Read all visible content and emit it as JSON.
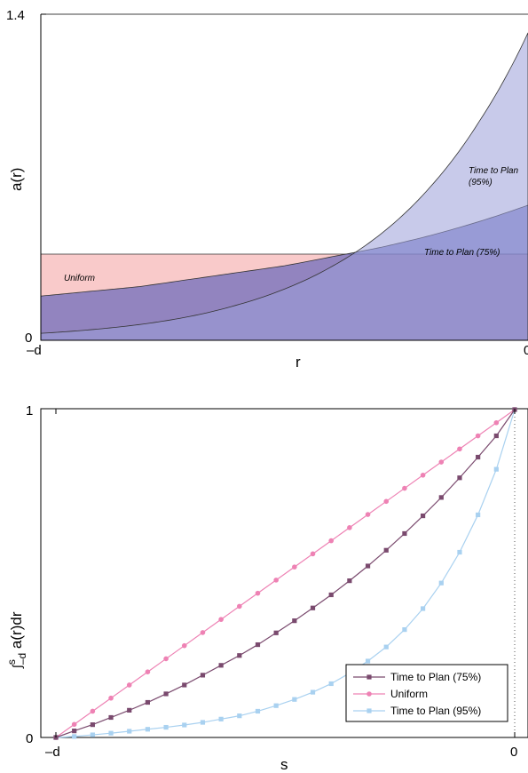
{
  "chart_data": [
    {
      "type": "area",
      "ylabel": "a(r)",
      "xlabel": "r",
      "x_tick_labels": [
        "–d",
        "0"
      ],
      "y_tick_labels": [
        "0",
        "1.4"
      ],
      "xlim": [
        0,
        1
      ],
      "ylim": [
        0,
        1.4
      ],
      "grid": false,
      "series": [
        {
          "name": "Uniform",
          "color": "#f6aaaa",
          "x": [
            0,
            0.1,
            0.2,
            0.3,
            0.4,
            0.5,
            0.6,
            0.7,
            0.8,
            0.9,
            1.0
          ],
          "values": [
            0.37,
            0.37,
            0.37,
            0.37,
            0.37,
            0.37,
            0.37,
            0.37,
            0.37,
            0.37,
            0.37
          ]
        },
        {
          "name": "Time to Plan (75%)",
          "color": "#5358b8",
          "x": [
            0,
            0.1,
            0.2,
            0.3,
            0.4,
            0.5,
            0.6,
            0.7,
            0.8,
            0.9,
            1.0
          ],
          "values": [
            0.19,
            0.21,
            0.23,
            0.26,
            0.29,
            0.32,
            0.36,
            0.4,
            0.45,
            0.51,
            0.58
          ]
        },
        {
          "name": "Time to Plan (95%)",
          "color": "#9a9ed8",
          "x": [
            0,
            0.1,
            0.2,
            0.3,
            0.4,
            0.5,
            0.6,
            0.7,
            0.8,
            0.9,
            1.0
          ],
          "values": [
            0.03,
            0.045,
            0.067,
            0.1,
            0.15,
            0.22,
            0.32,
            0.46,
            0.66,
            0.94,
            1.32
          ]
        }
      ],
      "annotations": [
        {
          "text": "Uniform"
        },
        {
          "text": "Time to Plan (75%)"
        },
        {
          "text": "Time to Plan"
        },
        {
          "text": "(95%)"
        }
      ]
    },
    {
      "type": "line",
      "ylabel": "∫ˢ₋ᵈ a(r)dr",
      "ylabel_parts": {
        "integral": "∫",
        "upper": "s",
        "lower": "–d",
        "rest": " a(r)dr"
      },
      "xlabel": "s",
      "x_tick_labels": [
        "–d",
        "0"
      ],
      "y_tick_labels": [
        "0",
        "1"
      ],
      "xlim": [
        0,
        1
      ],
      "ylim": [
        0,
        1
      ],
      "legend_position": "bottom-right",
      "grid": false,
      "series": [
        {
          "name": "Time to Plan (75%)",
          "color": "#7a4a6e",
          "marker": "square",
          "x": [
            0,
            0.04,
            0.08,
            0.12,
            0.16,
            0.2,
            0.24,
            0.28,
            0.32,
            0.36,
            0.4,
            0.44,
            0.48,
            0.52,
            0.56,
            0.6,
            0.64,
            0.68,
            0.72,
            0.76,
            0.8,
            0.84,
            0.88,
            0.92,
            0.96,
            1.0
          ],
          "values": [
            0,
            0.02,
            0.039,
            0.061,
            0.083,
            0.107,
            0.133,
            0.16,
            0.19,
            0.22,
            0.25,
            0.283,
            0.319,
            0.356,
            0.395,
            0.435,
            0.478,
            0.523,
            0.571,
            0.622,
            0.676,
            0.732,
            0.792,
            0.855,
            0.92,
            1.0
          ]
        },
        {
          "name": "Uniform",
          "color": "#ee82b4",
          "marker": "circle",
          "x": [
            0,
            0.04,
            0.08,
            0.12,
            0.16,
            0.2,
            0.24,
            0.28,
            0.32,
            0.36,
            0.4,
            0.44,
            0.48,
            0.52,
            0.56,
            0.6,
            0.64,
            0.68,
            0.72,
            0.76,
            0.8,
            0.84,
            0.88,
            0.92,
            0.96,
            1.0
          ],
          "values": [
            0,
            0.04,
            0.08,
            0.12,
            0.16,
            0.2,
            0.24,
            0.28,
            0.32,
            0.36,
            0.4,
            0.44,
            0.48,
            0.52,
            0.56,
            0.6,
            0.64,
            0.68,
            0.72,
            0.76,
            0.8,
            0.84,
            0.88,
            0.92,
            0.96,
            1.0
          ]
        },
        {
          "name": "Time to Plan (95%)",
          "color": "#a9d1f0",
          "marker": "square",
          "x": [
            0,
            0.04,
            0.08,
            0.12,
            0.16,
            0.2,
            0.24,
            0.28,
            0.32,
            0.36,
            0.4,
            0.44,
            0.48,
            0.52,
            0.56,
            0.6,
            0.64,
            0.68,
            0.72,
            0.76,
            0.8,
            0.84,
            0.88,
            0.92,
            0.96,
            1.0
          ],
          "values": [
            0,
            0.003,
            0.008,
            0.013,
            0.019,
            0.025,
            0.031,
            0.038,
            0.046,
            0.056,
            0.066,
            0.08,
            0.097,
            0.116,
            0.138,
            0.164,
            0.196,
            0.233,
            0.276,
            0.329,
            0.393,
            0.471,
            0.565,
            0.679,
            0.818,
            1.0
          ]
        }
      ]
    }
  ]
}
